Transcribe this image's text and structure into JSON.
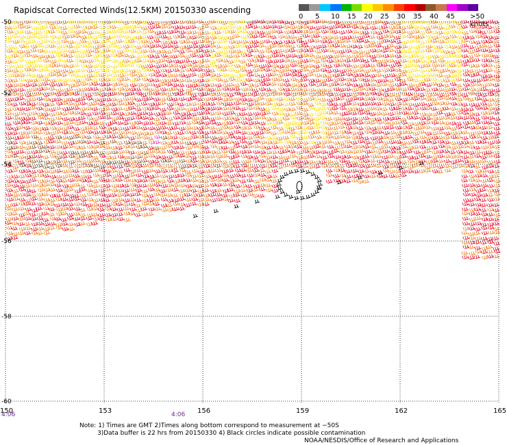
{
  "title": "Rapidscat Corrected Winds(12.5KM) 20150330 ascending",
  "colorbar": {
    "labels": [
      "0",
      "5",
      "10",
      "15",
      "20",
      "25",
      "30",
      "35",
      "40",
      "45",
      ">50 knots"
    ],
    "colors": [
      "#555555",
      "#9a9a9a",
      "#00c8ff",
      "#0078ff",
      "#00b400",
      "#78dc00",
      "#ffff00",
      "#ffc800",
      "#ff8c00",
      "#ff3c00",
      "#ff0000",
      "#b40000",
      "#8c5a2a",
      "#c87850",
      "#ff00ff",
      "#a000c8",
      "#5a00a0"
    ]
  },
  "map": {
    "lat_labels": [
      "-50",
      "-52",
      "-54",
      "-56",
      "-58",
      "-60"
    ],
    "lon_labels": [
      "150",
      "153",
      "156",
      "159",
      "162",
      "165"
    ],
    "time_labels": [
      "4:06",
      "4:06"
    ],
    "barb_colors": {
      "yellow": "#ffdd00",
      "orange": "#f08020",
      "red": "#e8102a",
      "brown": "#8a5a2a",
      "black": "#000000",
      "magenta": "#e040c0"
    }
  },
  "notes": {
    "line1": "Note: 1) Times are GMT 2)Times along bottom correspond to measurement at −50S",
    "line2": "3)Data buffer is 22 hrs from 20150330 4) Black circles indicate possible contamination",
    "credit": "NOAA/NESDIS/Office of Research and Applications"
  }
}
